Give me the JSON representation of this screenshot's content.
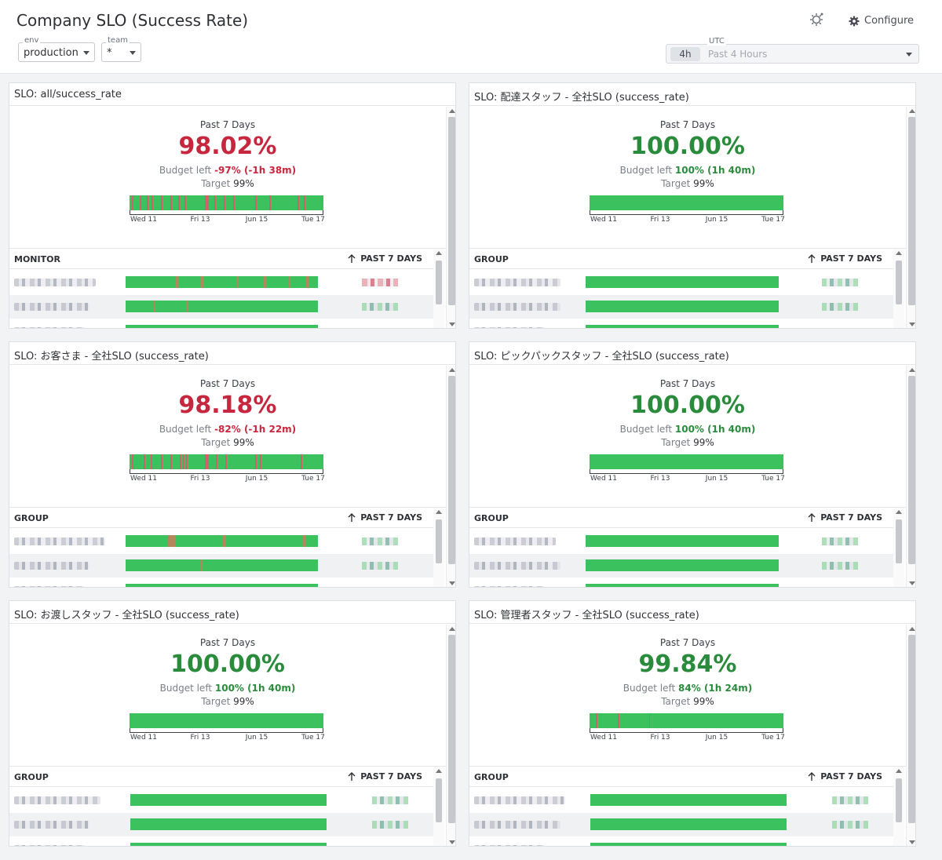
{
  "header": {
    "title": "Company SLO (Success Rate)",
    "template_vars": [
      {
        "label": "env",
        "value": "production"
      },
      {
        "label": "team",
        "value": "*"
      }
    ],
    "configure_label": "Configure",
    "time": {
      "timezone": "UTC",
      "badge": "4h",
      "range": "Past 4 Hours"
    }
  },
  "widgets": [
    {
      "title": "SLO: all/success_rate",
      "period": "Past 7 Days",
      "value": "98.02%",
      "status": "breached",
      "budget_label": "Budget left",
      "budget_value": "-97% (-1h 38m)",
      "target_label": "Target",
      "target_value": "99%",
      "ticks": [
        "Wed 11",
        "Fri 13",
        "Jun 15",
        "Tue 17"
      ],
      "table_header": "MONITOR",
      "sort_header": "PAST 7 DAYS"
    },
    {
      "title": "SLO: 配達スタッフ - 全社SLO (success_rate)",
      "period": "Past 7 Days",
      "value": "100.00%",
      "status": "ok",
      "budget_label": "Budget left",
      "budget_value": "100% (1h 40m)",
      "target_label": "Target",
      "target_value": "99%",
      "ticks": [
        "Wed 11",
        "Fri 13",
        "Jun 15",
        "Tue 17"
      ],
      "table_header": "GROUP",
      "sort_header": "PAST 7 DAYS"
    },
    {
      "title": "SLO: お客さま - 全社SLO (success_rate)",
      "period": "Past 7 Days",
      "value": "98.18%",
      "status": "breached",
      "budget_label": "Budget left",
      "budget_value": "-82% (-1h 22m)",
      "target_label": "Target",
      "target_value": "99%",
      "ticks": [
        "Wed 11",
        "Fri 13",
        "Jun 15",
        "Tue 17"
      ],
      "table_header": "GROUP",
      "sort_header": "PAST 7 DAYS"
    },
    {
      "title": "SLO: ピックパックスタッフ - 全社SLO (success_rate)",
      "period": "Past 7 Days",
      "value": "100.00%",
      "status": "ok",
      "budget_label": "Budget left",
      "budget_value": "100% (1h 40m)",
      "target_label": "Target",
      "target_value": "99%",
      "ticks": [
        "Wed 11",
        "Fri 13",
        "Jun 15",
        "Tue 17"
      ],
      "table_header": "GROUP",
      "sort_header": "PAST 7 DAYS"
    },
    {
      "title": "SLO: お渡しスタッフ - 全社SLO (success_rate)",
      "period": "Past 7 Days",
      "value": "100.00%",
      "status": "ok",
      "budget_label": "Budget left",
      "budget_value": "100% (1h 40m)",
      "target_label": "Target",
      "target_value": "99%",
      "ticks": [
        "Wed 11",
        "Fri 13",
        "Jun 15",
        "Tue 17"
      ],
      "table_header": "GROUP",
      "sort_header": "PAST 7 DAYS"
    },
    {
      "title": "SLO: 管理者スタッフ - 全社SLO (success_rate)",
      "period": "Past 7 Days",
      "value": "99.84%",
      "status": "ok",
      "budget_label": "Budget left",
      "budget_value": "84% (1h 24m)",
      "target_label": "Target",
      "target_value": "99%",
      "ticks": [
        "Wed 11",
        "Fri 13",
        "Jun 15",
        "Tue 17"
      ],
      "table_header": "GROUP",
      "sort_header": "PAST 7 DAYS"
    }
  ],
  "colors": {
    "ok": "#2a8b3c",
    "breached": "#c7273e",
    "bar_good": "#3bc25e",
    "bar_bad": "#d4606a"
  }
}
